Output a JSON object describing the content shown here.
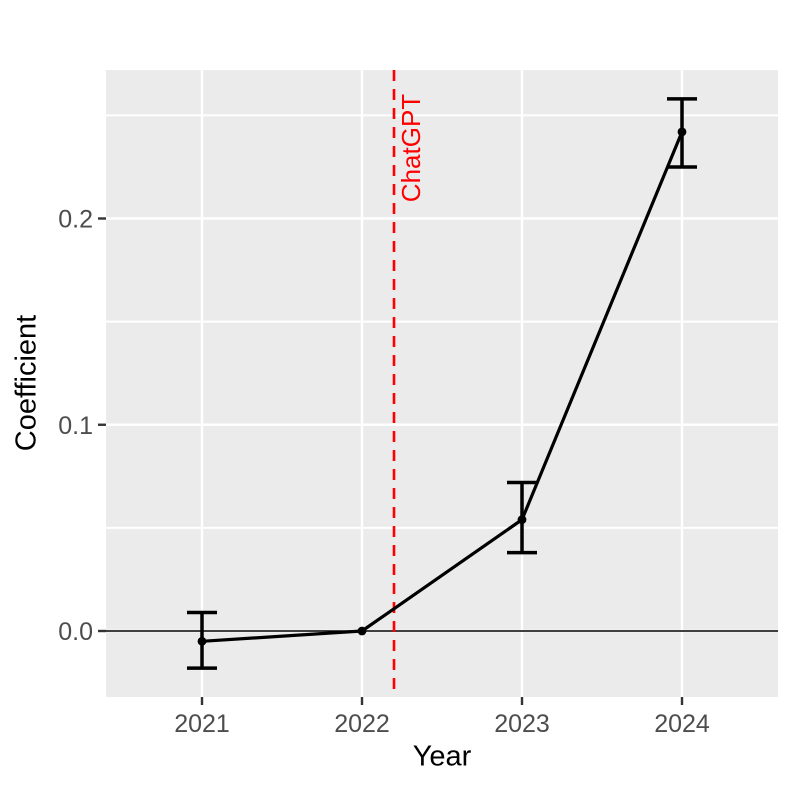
{
  "figure": {
    "background": "#FFFFFF",
    "panel_background": "#EBEBEB",
    "grid_color": "#FFFFFF",
    "tick_mark_color": "#333333",
    "tick_label_color": "#4D4D4D",
    "axis_title_color": "#000000",
    "data_color": "#000000",
    "annotation_color": "#FF0000"
  },
  "axes": {
    "x_title": "Year",
    "y_title": "Coefficient"
  },
  "chart_data": {
    "type": "line",
    "title": "",
    "xlabel": "Year",
    "ylabel": "Coefficient",
    "x": [
      2021,
      2022,
      2023,
      2024
    ],
    "x_tick_labels": [
      "2021",
      "2022",
      "2023",
      "2024"
    ],
    "y_tick_values": [
      0.0,
      0.1,
      0.2
    ],
    "y_tick_labels": [
      "0.0",
      "0.1",
      "0.2"
    ],
    "y_minor_grid": [
      0.05,
      0.15,
      0.25
    ],
    "xlim": [
      2020.4,
      2024.6
    ],
    "ylim": [
      -0.032,
      0.272
    ],
    "grid": true,
    "legend": "none",
    "hline": {
      "y": 0.0,
      "color": "#000000"
    },
    "vline": {
      "x": 2022.2,
      "label": "ChatGPT",
      "style": "dashed",
      "color": "#FF0000"
    },
    "series": [
      {
        "name": "Coefficient",
        "color": "#000000",
        "values": [
          -0.005,
          0.0,
          0.054,
          0.242
        ],
        "error_low": [
          -0.018,
          null,
          0.038,
          0.225
        ],
        "error_high": [
          0.009,
          null,
          0.072,
          0.258
        ]
      }
    ]
  }
}
